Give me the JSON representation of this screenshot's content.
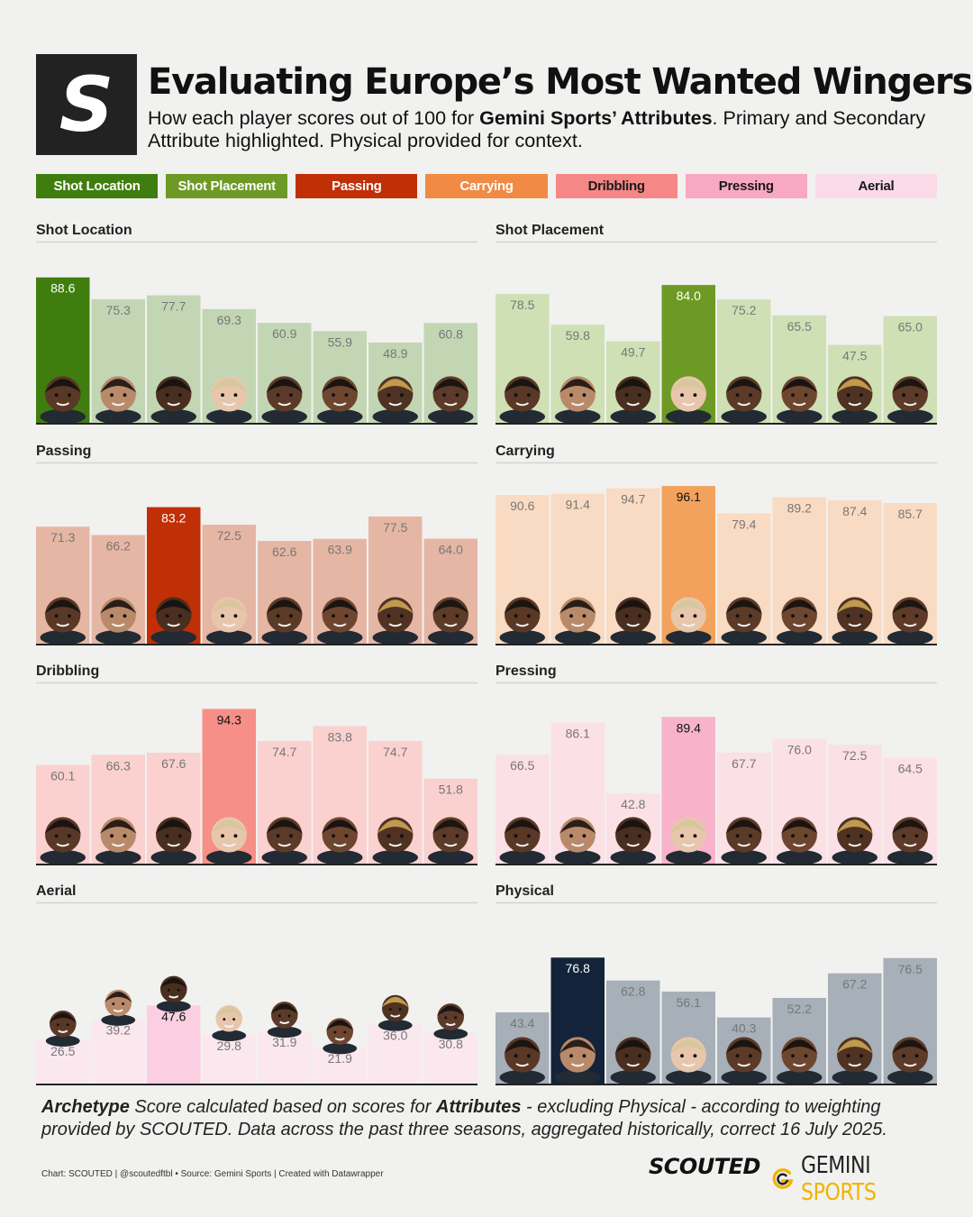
{
  "header": {
    "logo_letter": "S",
    "title": "Evaluating Europe’s Most Wanted Wingers",
    "subtitle_pre": "How each player scores out of 100 for ",
    "subtitle_bold": "Gemini Sports’ Attributes",
    "subtitle_post": ". Primary and Secondary Attribute highlighted. Physical provided for context."
  },
  "legend": [
    {
      "label": "Shot Location",
      "bg": "#3f7e0e",
      "fg": "#ffffff"
    },
    {
      "label": "Shot Placement",
      "bg": "#6d9a25",
      "fg": "#ffffff"
    },
    {
      "label": "Passing",
      "bg": "#c12f07",
      "fg": "#ffffff"
    },
    {
      "label": "Carrying",
      "bg": "#f08a44",
      "fg": "#ffffff"
    },
    {
      "label": "Dribbling",
      "bg": "#f68787",
      "fg": "#1a1a1a"
    },
    {
      "label": "Pressing",
      "bg": "#f9a8c4",
      "fg": "#1a1a1a"
    },
    {
      "label": "Aerial",
      "bg": "#fbdbe8",
      "fg": "#1a1a1a"
    }
  ],
  "chart_data": [
    {
      "type": "bar",
      "title": "Shot Location",
      "values": [
        88.6,
        75.3,
        77.7,
        69.3,
        60.9,
        55.9,
        48.9,
        60.8
      ],
      "highlight_index": 0,
      "base_color": "#c3d6b4",
      "highlight_color": "#3f7e0e",
      "ylim": [
        0,
        100
      ]
    },
    {
      "type": "bar",
      "title": "Shot Placement",
      "values": [
        78.5,
        59.8,
        49.7,
        84.0,
        75.2,
        65.5,
        47.5,
        65.0
      ],
      "highlight_index": 3,
      "base_color": "#cfe0b5",
      "highlight_color": "#6d9a25",
      "ylim": [
        0,
        100
      ]
    },
    {
      "type": "bar",
      "title": "Passing",
      "values": [
        71.3,
        66.2,
        83.2,
        72.5,
        62.6,
        63.9,
        77.5,
        64.0
      ],
      "highlight_index": 2,
      "base_color": "#e6b6a4",
      "highlight_color": "#c12f07",
      "ylim": [
        0,
        100
      ]
    },
    {
      "type": "bar",
      "title": "Carrying",
      "values": [
        90.6,
        91.4,
        94.7,
        96.1,
        79.4,
        89.2,
        87.4,
        85.7
      ],
      "highlight_index": 3,
      "base_color": "#f9dbc3",
      "highlight_color": "#f2a25c",
      "ylim": [
        0,
        100
      ]
    },
    {
      "type": "bar",
      "title": "Dribbling",
      "values": [
        60.1,
        66.3,
        67.6,
        94.3,
        74.7,
        83.8,
        74.7,
        51.8
      ],
      "highlight_index": 3,
      "base_color": "#fad1cf",
      "highlight_color": "#f68f87",
      "ylim": [
        0,
        100
      ]
    },
    {
      "type": "bar",
      "title": "Pressing",
      "values": [
        66.5,
        86.1,
        42.8,
        89.4,
        67.7,
        76.0,
        72.5,
        64.5
      ],
      "highlight_index": 3,
      "base_color": "#fbe0e6",
      "highlight_color": "#f8b3cb",
      "ylim": [
        0,
        100
      ]
    },
    {
      "type": "bar",
      "title": "Aerial",
      "values": [
        26.5,
        39.2,
        47.6,
        29.8,
        31.9,
        21.9,
        36.0,
        30.8
      ],
      "highlight_index": 2,
      "base_color": "#fbe8ef",
      "highlight_color": "#fbcfe1",
      "ylim": [
        0,
        100
      ]
    },
    {
      "type": "bar",
      "title": "Physical",
      "values": [
        43.4,
        76.8,
        62.8,
        56.1,
        40.3,
        52.2,
        67.2,
        76.5
      ],
      "highlight_index": 1,
      "base_color": "#a7afb8",
      "highlight_color": "#13243a",
      "ylim": [
        0,
        100
      ]
    }
  ],
  "footer": {
    "note_1": "Archetype",
    "note_2": " Score calculated based on scores for ",
    "note_3": "Attributes",
    "note_4": " - excluding Physical - according to weighting provided by SCOUTED. Data across the past three seasons, aggregated historically, correct 16 July 2025.",
    "credit": "Chart: SCOUTED | @scoutedftbl • Source: Gemini Sports | Created with Datawrapper",
    "brand_scouted": "SCOUTED",
    "brand_gemini_1": "GEMINI",
    "brand_gemini_2": "SPORTS"
  },
  "icons": {
    "player": "player-face-icon",
    "gemini": "gemini-g-icon"
  }
}
